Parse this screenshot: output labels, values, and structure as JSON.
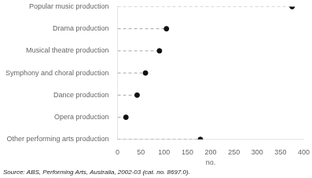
{
  "chart_data": {
    "type": "dot",
    "orientation": "horizontal",
    "categories": [
      "Popular music production",
      "Drama production",
      "Musical theatre production",
      "Symphony and choral production",
      "Dance production",
      "Opera production",
      "Other performing arts production"
    ],
    "values": [
      375,
      105,
      90,
      60,
      42,
      18,
      178
    ],
    "xlim": [
      0,
      400
    ],
    "xticks": [
      0,
      50,
      100,
      150,
      200,
      250,
      300,
      350,
      400
    ],
    "xlabel": "no.",
    "annotation": "Source: ABS, Performing Arts, Australia, 2002-03 (cat. no. 8697.0).",
    "color": "#111111",
    "line_style": "dashed",
    "grid": false
  }
}
